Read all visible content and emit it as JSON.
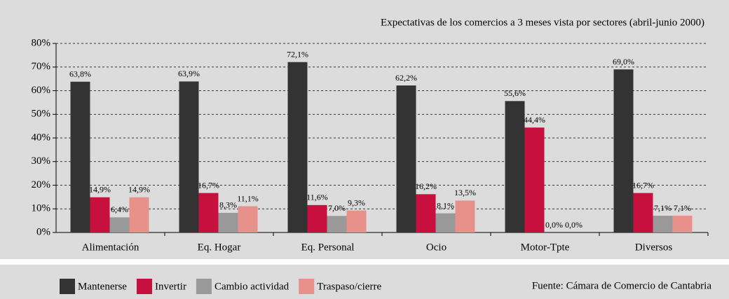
{
  "chart_data": {
    "type": "bar",
    "title": "Expectativas de los comercios a 3 meses vista por sectores (abril-junio 2000)",
    "source": "Fuente: Cámara de Comercio de Cantabria",
    "categories": [
      "Alimentación",
      "Eq. Hogar",
      "Eq. Personal",
      "Ocio",
      "Motor-Tpte",
      "Diversos"
    ],
    "series": [
      {
        "name": "Mantenerse",
        "color": "#333333",
        "values": [
          63.8,
          63.9,
          72.1,
          62.2,
          55.6,
          69.0
        ],
        "value_labels": [
          "63,8%",
          "63,9%",
          "72,1%",
          "62,2%",
          "55,6%",
          "69,0%"
        ]
      },
      {
        "name": "Invertir",
        "color": "#c8103f",
        "values": [
          14.9,
          16.7,
          11.6,
          16.2,
          44.4,
          16.7
        ],
        "value_labels": [
          "14,9%",
          "16,7%",
          "11,6%",
          "16,2%",
          "44,4%",
          "16,7%"
        ]
      },
      {
        "name": "Cambio actividad",
        "color": "#999999",
        "values": [
          6.4,
          8.3,
          7.0,
          8.1,
          0.0,
          7.1
        ],
        "value_labels": [
          "6,4%",
          "8,3%",
          "7,0%",
          "8,1%",
          "0,0%",
          "7,1%"
        ]
      },
      {
        "name": "Traspaso/cierre",
        "color": "#e8908a",
        "values": [
          14.9,
          11.1,
          9.3,
          13.5,
          0.0,
          7.1
        ],
        "value_labels": [
          "14,9%",
          "11,1%",
          "9,3%",
          "13,5%",
          "0,0%",
          "7,1%"
        ]
      }
    ],
    "ylim": [
      0,
      80
    ],
    "yticks": [
      {
        "value": 0,
        "label": "0%"
      },
      {
        "value": 10,
        "label": "10%"
      },
      {
        "value": 20,
        "label": "20%"
      },
      {
        "value": 30,
        "label": "30%"
      },
      {
        "value": 40,
        "label": "40%"
      },
      {
        "value": 50,
        "label": "50%"
      },
      {
        "value": 60,
        "label": "60%"
      },
      {
        "value": 70,
        "label": "70%"
      },
      {
        "value": 80,
        "label": "80%"
      }
    ],
    "grid": true,
    "legend": "bottom"
  }
}
